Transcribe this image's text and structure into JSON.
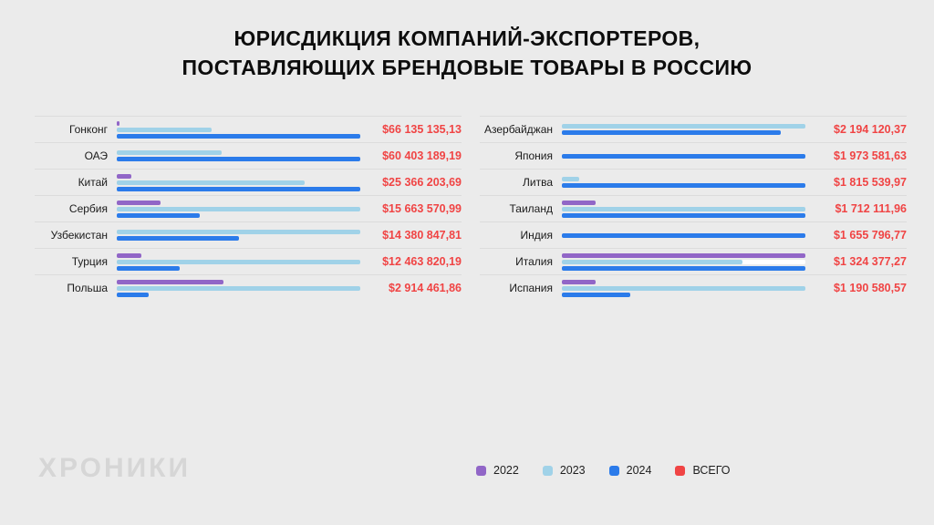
{
  "title": {
    "line1": "ЮРИСДИКЦИЯ КОМПАНИЙ-ЭКСПОРТЕРОВ,",
    "line2": "ПОСТАВЛЯЮЩИХ БРЕНДОВЫЕ ТОВАРЫ В РОССИЮ"
  },
  "logo": "ХРОНИКИ",
  "colors": {
    "y2022": "#9166c7",
    "y2023": "#a0d2e8",
    "y2024": "#2b7bea",
    "total": "#f04444",
    "background": "#ebebeb",
    "separator": "#dcdcdc",
    "track_white": "#ffffff"
  },
  "legend": [
    {
      "label": "2022",
      "color_key": "y2022"
    },
    {
      "label": "2023",
      "color_key": "y2023"
    },
    {
      "label": "2024",
      "color_key": "y2024"
    },
    {
      "label": "ВСЕГО",
      "color_key": "total"
    }
  ],
  "chart_data": {
    "type": "bar",
    "orientation": "horizontal",
    "unit": "USD",
    "note": "Per-year bar lengths are percent of the row track (estimated from pixels, no numeric axis shown); 'total' is the red ВСЕГО label shown per country.",
    "years": [
      "2022",
      "2023",
      "2024"
    ],
    "columns": [
      {
        "rows": [
          {
            "label": "Гонконг",
            "total": "$66 135 135,13",
            "bars": {
              "2022": 1,
              "2023": 39,
              "2024": 100
            }
          },
          {
            "label": "ОАЭ",
            "total": "$60 403 189,19",
            "bars": {
              "2023": 43,
              "2024": 100
            }
          },
          {
            "label": "Китай",
            "total": "$25 366 203,69",
            "bars": {
              "2022": 6,
              "2023": 77,
              "2024": 100
            }
          },
          {
            "label": "Сербия",
            "total": "$15 663 570,99",
            "bars": {
              "2022": 18,
              "2023": 100,
              "2024": 34
            }
          },
          {
            "label": "Узбекистан",
            "total": "$14 380 847,81",
            "bars": {
              "2023": 100,
              "2024": 50
            }
          },
          {
            "label": "Турция",
            "total": "$12 463 820,19",
            "bars": {
              "2022": 10,
              "2023": 100,
              "2024": 26
            }
          },
          {
            "label": "Польша",
            "total": "$2 914 461,86",
            "bars": {
              "2022": 44,
              "2023": 100,
              "2024": 13
            }
          }
        ]
      },
      {
        "rows": [
          {
            "label": "Азербайджан",
            "total": "$2 194 120,37",
            "bars": {
              "2023": 100,
              "2024": 90
            }
          },
          {
            "label": "Япония",
            "total": "$1 973 581,63",
            "bars": {
              "2024": 100
            }
          },
          {
            "label": "Литва",
            "total": "$1 815 539,97",
            "bars": {
              "2023": 7,
              "2024": 100
            }
          },
          {
            "label": "Таиланд",
            "total": "$1 712 111,96",
            "bars": {
              "2022": 14,
              "2023": 100,
              "2024": 100
            }
          },
          {
            "label": "Индия",
            "total": "$1 655 796,77",
            "bars": {
              "2024": 100
            }
          },
          {
            "label": "Италия",
            "total": "$1 324 377,27",
            "bars": {
              "2022": 100,
              "2023": 74,
              "2024": 100
            },
            "white_track_2023": true
          },
          {
            "label": "Испания",
            "total": "$1 190 580,57",
            "bars": {
              "2022": 14,
              "2023": 100,
              "2024": 28
            }
          }
        ]
      }
    ]
  }
}
